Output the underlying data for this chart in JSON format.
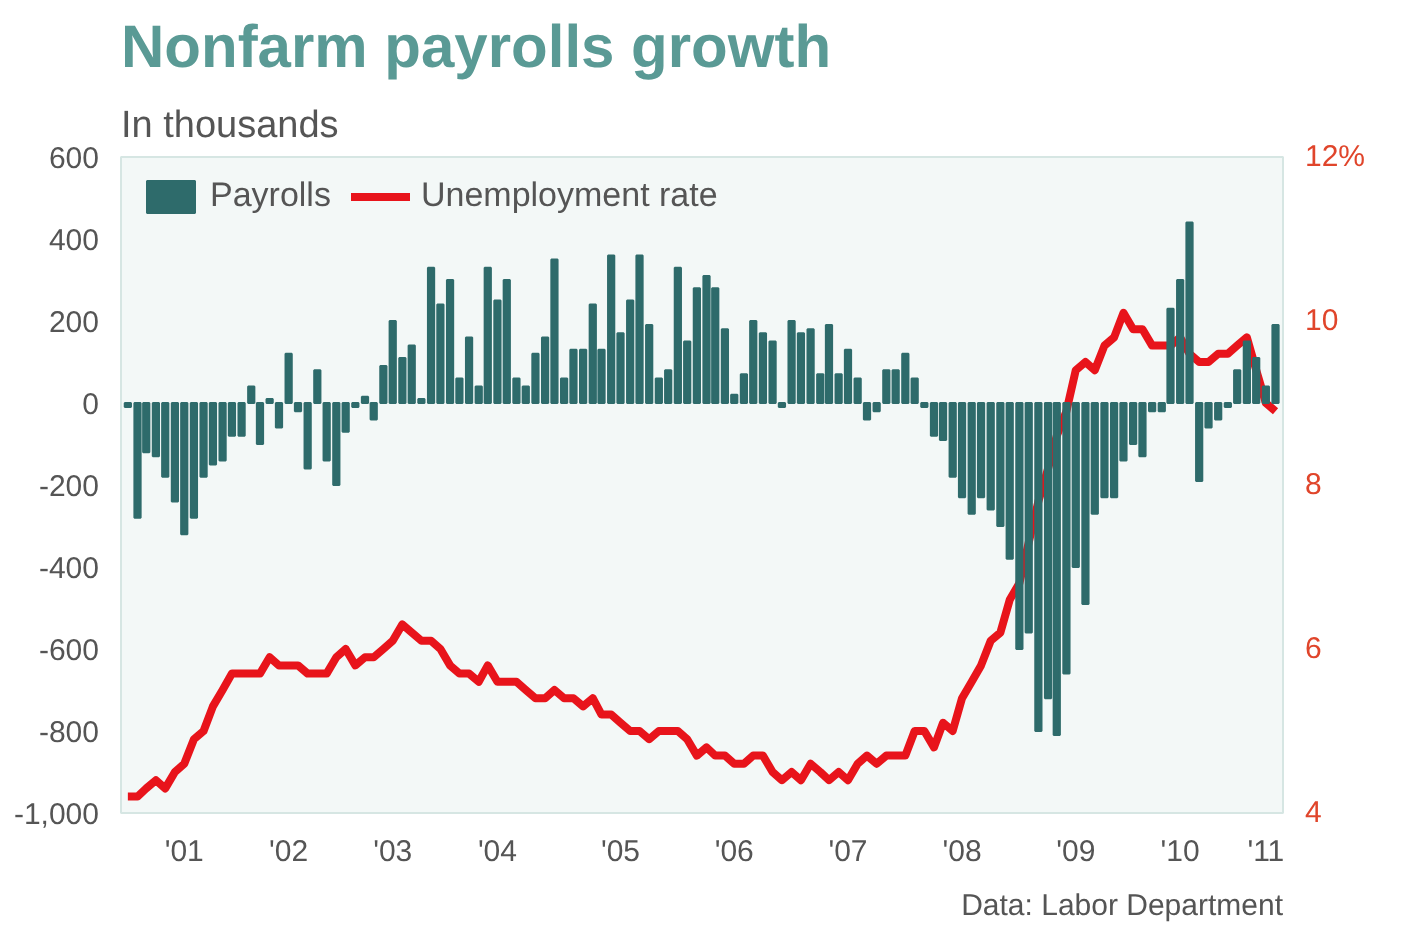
{
  "chart_data": {
    "type": "bar",
    "title": "Nonfarm payrolls growth",
    "subtitle": "In thousands",
    "annotations": [
      "Data: Labor Department"
    ],
    "x": [
      "2001-01",
      "2001-02",
      "2001-03",
      "2001-04",
      "2001-05",
      "2001-06",
      "2001-07",
      "2001-08",
      "2001-09",
      "2001-10",
      "2001-11",
      "2001-12",
      "2002-01",
      "2002-02",
      "2002-03",
      "2002-04",
      "2002-05",
      "2002-06",
      "2002-07",
      "2002-08",
      "2002-09",
      "2002-10",
      "2002-11",
      "2002-12",
      "2003-01",
      "2003-02",
      "2003-03",
      "2003-04",
      "2003-05",
      "2003-06",
      "2003-07",
      "2003-08",
      "2003-09",
      "2003-10",
      "2003-11",
      "2003-12",
      "2004-01",
      "2004-02",
      "2004-03",
      "2004-04",
      "2004-05",
      "2004-06",
      "2004-07",
      "2004-08",
      "2004-09",
      "2004-10",
      "2004-11",
      "2004-12",
      "2005-01",
      "2005-02",
      "2005-03",
      "2005-04",
      "2005-05",
      "2005-06",
      "2005-07",
      "2005-08",
      "2005-09",
      "2005-10",
      "2005-11",
      "2005-12",
      "2006-01",
      "2006-02",
      "2006-03",
      "2006-04",
      "2006-05",
      "2006-06",
      "2006-07",
      "2006-08",
      "2006-09",
      "2006-10",
      "2006-11",
      "2006-12",
      "2007-01",
      "2007-02",
      "2007-03",
      "2007-04",
      "2007-05",
      "2007-06",
      "2007-07",
      "2007-08",
      "2007-09",
      "2007-10",
      "2007-11",
      "2007-12",
      "2008-01",
      "2008-02",
      "2008-03",
      "2008-04",
      "2008-05",
      "2008-06",
      "2008-07",
      "2008-08",
      "2008-09",
      "2008-10",
      "2008-11",
      "2008-12",
      "2009-01",
      "2009-02",
      "2009-03",
      "2009-04",
      "2009-05",
      "2009-06",
      "2009-07",
      "2009-08",
      "2009-09",
      "2009-10",
      "2009-11",
      "2009-12",
      "2010-01",
      "2010-02",
      "2010-03",
      "2010-04",
      "2010-05",
      "2010-06",
      "2010-07",
      "2010-08",
      "2010-09",
      "2010-10",
      "2010-11",
      "2010-12",
      "2011-01",
      "2011-02"
    ],
    "series": [
      {
        "name": "Payrolls",
        "color": "#2e6b6b",
        "values": [
          -10,
          -280,
          -120,
          -130,
          -180,
          -240,
          -320,
          -280,
          -180,
          -150,
          -140,
          -80,
          -80,
          40,
          -100,
          10,
          -60,
          120,
          -20,
          -160,
          80,
          -140,
          -200,
          -70,
          -10,
          15,
          -40,
          90,
          200,
          110,
          140,
          10,
          330,
          240,
          300,
          60,
          160,
          40,
          330,
          250,
          300,
          60,
          40,
          120,
          160,
          350,
          60,
          130,
          130,
          240,
          130,
          360,
          170,
          250,
          360,
          190,
          60,
          80,
          330,
          150,
          280,
          310,
          280,
          180,
          20,
          70,
          200,
          170,
          150,
          -10,
          200,
          170,
          180,
          70,
          190,
          70,
          130,
          60,
          -40,
          -20,
          80,
          80,
          120,
          60,
          -10,
          -80,
          -90,
          -180,
          -230,
          -270,
          -230,
          -260,
          -300,
          -380,
          -600,
          -560,
          -800,
          -720,
          -810,
          -660,
          -400,
          -490,
          -270,
          -230,
          -230,
          -140,
          -100,
          -130,
          -20,
          -20,
          230,
          300,
          440,
          -190,
          -60,
          -40,
          -10,
          80,
          150,
          110,
          40,
          190
        ]
      },
      {
        "name": "Unemployment rate",
        "type": "line",
        "axis": "y2",
        "color": "#e8141b",
        "values": [
          4.2,
          4.2,
          4.3,
          4.4,
          4.3,
          4.5,
          4.6,
          4.9,
          5.0,
          5.3,
          5.5,
          5.7,
          5.7,
          5.7,
          5.7,
          5.9,
          5.8,
          5.8,
          5.8,
          5.7,
          5.7,
          5.7,
          5.9,
          6.0,
          5.8,
          5.9,
          5.9,
          6.0,
          6.1,
          6.3,
          6.2,
          6.1,
          6.1,
          6.0,
          5.8,
          5.7,
          5.7,
          5.6,
          5.8,
          5.6,
          5.6,
          5.6,
          5.5,
          5.4,
          5.4,
          5.5,
          5.4,
          5.4,
          5.3,
          5.4,
          5.2,
          5.2,
          5.1,
          5.0,
          5.0,
          4.9,
          5.0,
          5.0,
          5.0,
          4.9,
          4.7,
          4.8,
          4.7,
          4.7,
          4.6,
          4.6,
          4.7,
          4.7,
          4.5,
          4.4,
          4.5,
          4.4,
          4.6,
          4.5,
          4.4,
          4.5,
          4.4,
          4.6,
          4.7,
          4.6,
          4.7,
          4.7,
          4.7,
          5.0,
          5.0,
          4.8,
          5.1,
          5.0,
          5.4,
          5.6,
          5.8,
          6.1,
          6.2,
          6.6,
          6.8,
          7.3,
          7.8,
          8.2,
          8.6,
          8.9,
          9.4,
          9.5,
          9.4,
          9.7,
          9.8,
          10.1,
          9.9,
          9.9,
          9.7,
          9.7,
          9.7,
          9.8,
          9.6,
          9.5,
          9.5,
          9.6,
          9.6,
          9.7,
          9.8,
          9.4,
          9.0,
          8.9
        ]
      }
    ],
    "xlim": [
      "2000-12-10",
      "2011-02-25"
    ],
    "xticks": [
      {
        "value": "2001-07",
        "label": "'01"
      },
      {
        "value": "2002-06",
        "label": "'02"
      },
      {
        "value": "2003-05",
        "label": "'03"
      },
      {
        "value": "2004-04",
        "label": "'04"
      },
      {
        "value": "2005-05",
        "label": "'05"
      },
      {
        "value": "2006-05",
        "label": "'06"
      },
      {
        "value": "2007-05",
        "label": "'07"
      },
      {
        "value": "2008-05",
        "label": "'08"
      },
      {
        "value": "2009-05",
        "label": "'09"
      },
      {
        "value": "2010-04",
        "label": "'10"
      },
      {
        "value": "2011-01",
        "label": "'11"
      }
    ],
    "ylim": [
      -1000,
      600
    ],
    "yticks": [
      {
        "value": -1000,
        "label": "-1,000"
      },
      -800,
      -600,
      -400,
      -200,
      0,
      200,
      400,
      600
    ],
    "y2lim": [
      4,
      12
    ],
    "y2ticks": [
      4,
      6,
      8,
      10,
      {
        "value": 12,
        "label": "12%"
      }
    ],
    "legend": "top left",
    "grid": false
  }
}
